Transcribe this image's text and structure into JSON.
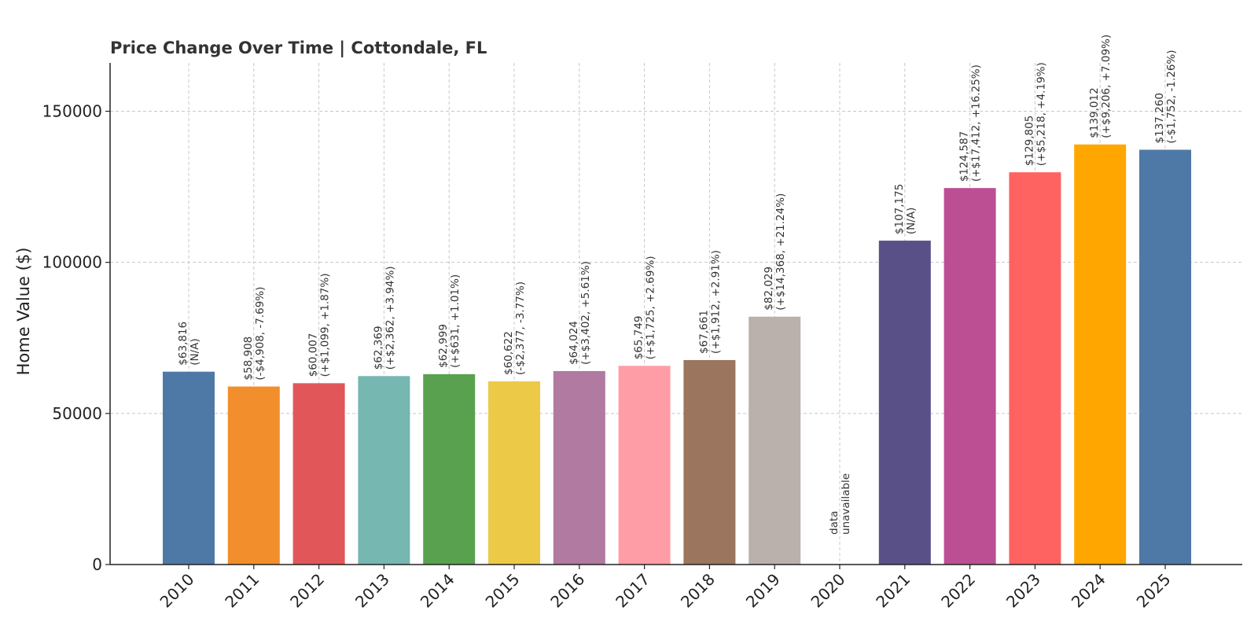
{
  "chart_data": {
    "type": "bar",
    "title": "Price Change Over Time | Cottondale, FL",
    "xlabel": "",
    "ylabel": "Home Value ($)",
    "ylim": [
      0,
      166000
    ],
    "yticks": [
      0,
      50000,
      100000,
      150000
    ],
    "grid": true,
    "categories": [
      "2010",
      "2011",
      "2012",
      "2013",
      "2014",
      "2015",
      "2016",
      "2017",
      "2018",
      "2019",
      "2020",
      "2021",
      "2022",
      "2023",
      "2024",
      "2025"
    ],
    "values": [
      63816,
      58908,
      60007,
      62369,
      62999,
      60622,
      64024,
      65749,
      67661,
      82029,
      null,
      107175,
      124587,
      129805,
      139012,
      137260
    ],
    "colors": [
      "#4e79a7",
      "#f28e2b",
      "#e15759",
      "#76b7b2",
      "#59a14f",
      "#edc948",
      "#b07aa1",
      "#ff9da7",
      "#9c755f",
      "#bab0ac",
      "#ffffff",
      "#5a5088",
      "#bc4f93",
      "#ff6361",
      "#ffa600",
      "#4e79a7"
    ],
    "value_labels": [
      "$63,816",
      "$58,908",
      "$60,007",
      "$62,369",
      "$62,999",
      "$60,622",
      "$64,024",
      "$65,749",
      "$67,661",
      "$82,029",
      "data",
      "$107,175",
      "$124,587",
      "$129,805",
      "$139,012",
      "$137,260"
    ],
    "change_labels": [
      "(N/A)",
      "(-$4,908, -7.69%)",
      "(+$1,099, +1.87%)",
      "(+$2,362, +3.94%)",
      "(+$631, +1.01%)",
      "(-$2,377, -3.77%)",
      "(+$3,402, +5.61%)",
      "(+$1,725, +2.69%)",
      "(+$1,912, +2.91%)",
      "(+$14,368, +21.24%)",
      "unavailable",
      "(N/A)",
      "(+$17,412, +16.25%)",
      "(+$5,218, +4.19%)",
      "(+$9,206, +7.09%)",
      "(-$1,752, -1.26%)"
    ]
  }
}
